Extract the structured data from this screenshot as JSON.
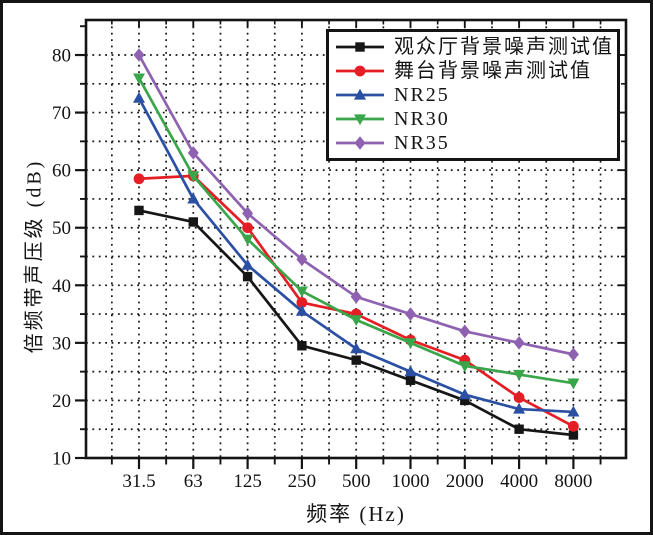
{
  "figure": {
    "background": "#ffffff",
    "frame_color": "#141414",
    "grid_style": "dotted"
  },
  "chart_data": {
    "type": "line",
    "title": "",
    "xlabel": "频率 (Hz)",
    "ylabel": "倍频带声压级 (dB)",
    "x_categories": [
      "31.5",
      "63",
      "125",
      "250",
      "500",
      "1000",
      "2000",
      "4000",
      "8000"
    ],
    "y_ticks": [
      10,
      20,
      30,
      40,
      50,
      60,
      70,
      80
    ],
    "ylim": [
      10,
      86
    ],
    "grid": "dotted grid every 5 dB horizontally and every half octave vertically",
    "legend_position": "top-right inside plot",
    "series": [
      {
        "name": "观众厅背景噪声测试值",
        "color": "#161616",
        "marker": "square",
        "values": [
          53,
          51,
          41.5,
          29.5,
          27,
          23.5,
          20,
          15,
          14
        ]
      },
      {
        "name": "舞台背景噪声测试值",
        "color": "#e51e25",
        "marker": "circle",
        "values": [
          58.5,
          59,
          50,
          37,
          35,
          30.5,
          27,
          20.5,
          15.5
        ]
      },
      {
        "name": "NR25",
        "color": "#2a4fa3",
        "marker": "triangle-up",
        "values": [
          72.5,
          55,
          43.5,
          35.5,
          29,
          25,
          21,
          18.5,
          18
        ]
      },
      {
        "name": "NR30",
        "color": "#3aa54a",
        "marker": "triangle-down",
        "values": [
          76,
          59,
          48,
          39,
          34,
          30,
          26,
          24.5,
          23
        ]
      },
      {
        "name": "NR35",
        "color": "#8e62b0",
        "marker": "diamond",
        "values": [
          80,
          63,
          52.5,
          44.5,
          38,
          35,
          32,
          30,
          28
        ]
      }
    ]
  }
}
